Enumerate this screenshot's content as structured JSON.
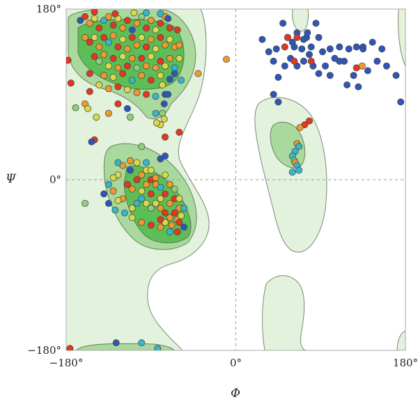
{
  "chart_data": {
    "type": "scatter",
    "title": "",
    "xlabel": "Φ",
    "ylabel": "Ψ",
    "xlim": [
      -180,
      180
    ],
    "ylim": [
      -180,
      180
    ],
    "x_ticks": [
      {
        "value": -180,
        "label": "−180°"
      },
      {
        "value": 0,
        "label": "0°"
      },
      {
        "value": 180,
        "label": "180°"
      }
    ],
    "y_ticks": [
      {
        "value": 180,
        "label": "180°"
      },
      {
        "value": 0,
        "label": "0°"
      },
      {
        "value": -180,
        "label": "−180°"
      }
    ],
    "zero_lines": true,
    "colors": {
      "red": "#e5361f",
      "orange": "#f09a2a",
      "yellow": "#d9d94a",
      "lightgreen": "#8fd07a",
      "cyan": "#38b6c9",
      "blue": "#2e55b8"
    },
    "points": [
      [
        -165,
        168,
        "blue"
      ],
      [
        -160,
        172,
        "red"
      ],
      [
        -155,
        165,
        "orange"
      ],
      [
        -150,
        170,
        "yellow"
      ],
      [
        -145,
        160,
        "red"
      ],
      [
        -140,
        168,
        "cyan"
      ],
      [
        -135,
        172,
        "orange"
      ],
      [
        -130,
        163,
        "red"
      ],
      [
        -125,
        170,
        "yellow"
      ],
      [
        -120,
        160,
        "orange"
      ],
      [
        -115,
        168,
        "red"
      ],
      [
        -110,
        158,
        "blue"
      ],
      [
        -105,
        165,
        "orange"
      ],
      [
        -100,
        172,
        "lightgreen"
      ],
      [
        -95,
        160,
        "red"
      ],
      [
        -90,
        168,
        "orange"
      ],
      [
        -85,
        158,
        "yellow"
      ],
      [
        -80,
        165,
        "red"
      ],
      [
        -75,
        172,
        "orange"
      ],
      [
        -70,
        160,
        "red"
      ],
      [
        -160,
        150,
        "orange"
      ],
      [
        -155,
        145,
        "red"
      ],
      [
        -150,
        150,
        "yellow"
      ],
      [
        -145,
        140,
        "orange"
      ],
      [
        -140,
        150,
        "red"
      ],
      [
        -135,
        145,
        "cyan"
      ],
      [
        -130,
        152,
        "orange"
      ],
      [
        -125,
        140,
        "red"
      ],
      [
        -120,
        148,
        "yellow"
      ],
      [
        -115,
        138,
        "orange"
      ],
      [
        -110,
        150,
        "red"
      ],
      [
        -105,
        142,
        "orange"
      ],
      [
        -100,
        150,
        "yellow"
      ],
      [
        -95,
        140,
        "red"
      ],
      [
        -90,
        148,
        "orange"
      ],
      [
        -85,
        138,
        "yellow"
      ],
      [
        -80,
        150,
        "red"
      ],
      [
        -75,
        142,
        "orange"
      ],
      [
        -70,
        148,
        "yellow"
      ],
      [
        -65,
        140,
        "orange"
      ],
      [
        -150,
        130,
        "red"
      ],
      [
        -145,
        125,
        "lightgreen"
      ],
      [
        -140,
        132,
        "orange"
      ],
      [
        -135,
        120,
        "yellow"
      ],
      [
        -130,
        128,
        "red"
      ],
      [
        -125,
        118,
        "orange"
      ],
      [
        -120,
        130,
        "yellow"
      ],
      [
        -115,
        120,
        "red"
      ],
      [
        -110,
        128,
        "orange"
      ],
      [
        -105,
        118,
        "lightgreen"
      ],
      [
        -100,
        128,
        "red"
      ],
      [
        -95,
        120,
        "orange"
      ],
      [
        -90,
        130,
        "yellow"
      ],
      [
        -85,
        118,
        "orange"
      ],
      [
        -80,
        125,
        "red"
      ],
      [
        -75,
        120,
        "yellow"
      ],
      [
        -70,
        128,
        "orange"
      ],
      [
        -65,
        118,
        "cyan"
      ],
      [
        -140,
        110,
        "orange"
      ],
      [
        -130,
        108,
        "yellow"
      ],
      [
        -120,
        112,
        "red"
      ],
      [
        -110,
        105,
        "cyan"
      ],
      [
        -100,
        110,
        "orange"
      ],
      [
        -90,
        105,
        "red"
      ],
      [
        -80,
        110,
        "yellow"
      ],
      [
        -70,
        106,
        "blue"
      ],
      [
        -155,
        112,
        "red"
      ],
      [
        -145,
        100,
        "yellow"
      ],
      [
        -135,
        96,
        "orange"
      ],
      [
        -125,
        98,
        "red"
      ],
      [
        -115,
        95,
        "yellow"
      ],
      [
        -105,
        92,
        "orange"
      ],
      [
        -95,
        90,
        "red"
      ],
      [
        -85,
        88,
        "cyan"
      ],
      [
        -75,
        90,
        "blue"
      ],
      [
        -65,
        112,
        "blue"
      ],
      [
        -60,
        128,
        "yellow"
      ],
      [
        -60,
        142,
        "orange"
      ],
      [
        -62,
        158,
        "red"
      ],
      [
        -72,
        170,
        "blue"
      ],
      [
        -80,
        175,
        "cyan"
      ],
      [
        -128,
        175,
        "red"
      ],
      [
        -108,
        176,
        "yellow"
      ],
      [
        -150,
        177,
        "red"
      ],
      [
        -95,
        176,
        "cyan"
      ],
      [
        -58,
        105,
        "cyan"
      ],
      [
        -78,
        100,
        "yellow"
      ],
      [
        -72,
        90,
        "blue"
      ],
      [
        -76,
        80,
        "blue"
      ],
      [
        -85,
        70,
        "cyan"
      ],
      [
        -78,
        70,
        "lightgreen"
      ],
      [
        -76,
        64,
        "yellow"
      ],
      [
        -80,
        58,
        "yellow"
      ],
      [
        -84,
        60,
        "yellow"
      ],
      [
        -40,
        112,
        "orange"
      ],
      [
        -115,
        75,
        "blue"
      ],
      [
        -178,
        126,
        "red"
      ],
      [
        -175,
        102,
        "red"
      ],
      [
        -160,
        80,
        "orange"
      ],
      [
        -157,
        75,
        "yellow"
      ],
      [
        -170,
        76,
        "lightgreen"
      ],
      [
        -148,
        66,
        "yellow"
      ],
      [
        -135,
        70,
        "orange"
      ],
      [
        -125,
        80,
        "red"
      ],
      [
        -112,
        66,
        "lightgreen"
      ],
      [
        -155,
        93,
        "red"
      ],
      [
        -150,
        42,
        "red"
      ],
      [
        -153,
        40,
        "blue"
      ],
      [
        -100,
        35,
        "lightgreen"
      ],
      [
        -75,
        45,
        "red"
      ],
      [
        -60,
        50,
        "red"
      ],
      [
        -10,
        127,
        "orange"
      ],
      [
        -160,
        -25,
        "lightgreen"
      ],
      [
        -176,
        -178,
        "red"
      ],
      [
        -127,
        -172,
        "blue"
      ],
      [
        -100,
        -172,
        "cyan"
      ],
      [
        -83,
        -178,
        "cyan"
      ],
      [
        -135,
        -5,
        "cyan"
      ],
      [
        -130,
        -12,
        "orange"
      ],
      [
        -125,
        5,
        "yellow"
      ],
      [
        -120,
        15,
        "orange"
      ],
      [
        -115,
        -5,
        "red"
      ],
      [
        -112,
        10,
        "blue"
      ],
      [
        -105,
        0,
        "red"
      ],
      [
        -100,
        5,
        "orange"
      ],
      [
        -95,
        10,
        "yellow"
      ],
      [
        -90,
        0,
        "red"
      ],
      [
        -110,
        -10,
        "orange"
      ],
      [
        -100,
        -12,
        "yellow"
      ],
      [
        -95,
        -5,
        "orange"
      ],
      [
        -90,
        -15,
        "red"
      ],
      [
        -85,
        -5,
        "orange"
      ],
      [
        -80,
        -20,
        "yellow"
      ],
      [
        -75,
        -15,
        "red"
      ],
      [
        -70,
        -25,
        "orange"
      ],
      [
        -65,
        -20,
        "red"
      ],
      [
        -60,
        -30,
        "orange"
      ],
      [
        -85,
        -25,
        "yellow"
      ],
      [
        -80,
        -30,
        "orange"
      ],
      [
        -75,
        -35,
        "red"
      ],
      [
        -70,
        -40,
        "orange"
      ],
      [
        -65,
        -35,
        "red"
      ],
      [
        -62,
        -42,
        "orange"
      ],
      [
        -60,
        -45,
        "red"
      ],
      [
        -58,
        -38,
        "yellow"
      ],
      [
        -68,
        -48,
        "orange"
      ],
      [
        -75,
        -45,
        "yellow"
      ],
      [
        -80,
        -42,
        "red"
      ],
      [
        -90,
        -30,
        "lightgreen"
      ],
      [
        -95,
        -25,
        "yellow"
      ],
      [
        -100,
        -20,
        "cyan"
      ],
      [
        -105,
        -25,
        "cyan"
      ],
      [
        -110,
        -30,
        "yellow"
      ],
      [
        -120,
        -20,
        "orange"
      ],
      [
        -125,
        -22,
        "yellow"
      ],
      [
        -118,
        -35,
        "cyan"
      ],
      [
        -110,
        -40,
        "yellow"
      ],
      [
        -100,
        -45,
        "orange"
      ],
      [
        -90,
        -48,
        "red"
      ],
      [
        -80,
        -50,
        "orange"
      ],
      [
        -70,
        -55,
        "cyan"
      ],
      [
        -62,
        -55,
        "red"
      ],
      [
        -55,
        -50,
        "blue"
      ],
      [
        -55,
        -30,
        "cyan"
      ],
      [
        -60,
        -20,
        "yellow"
      ],
      [
        -65,
        -10,
        "lightgreen"
      ],
      [
        -70,
        -5,
        "orange"
      ],
      [
        -75,
        5,
        "yellow"
      ],
      [
        -80,
        -8,
        "cyan"
      ],
      [
        -85,
        2,
        "orange"
      ],
      [
        -90,
        10,
        "yellow"
      ],
      [
        -95,
        18,
        "cyan"
      ],
      [
        -105,
        18,
        "yellow"
      ],
      [
        -112,
        20,
        "orange"
      ],
      [
        -125,
        18,
        "cyan"
      ],
      [
        -130,
        2,
        "yellow"
      ],
      [
        -135,
        -25,
        "blue"
      ],
      [
        -128,
        -32,
        "cyan"
      ],
      [
        -140,
        -15,
        "blue"
      ],
      [
        -80,
        22,
        "blue"
      ],
      [
        -75,
        25,
        "blue"
      ],
      [
        28,
        148,
        "blue"
      ],
      [
        35,
        135,
        "blue"
      ],
      [
        40,
        125,
        "blue"
      ],
      [
        43,
        138,
        "blue"
      ],
      [
        50,
        165,
        "blue"
      ],
      [
        55,
        150,
        "blue"
      ],
      [
        60,
        145,
        "blue"
      ],
      [
        65,
        155,
        "blue"
      ],
      [
        70,
        138,
        "blue"
      ],
      [
        75,
        150,
        "blue"
      ],
      [
        80,
        140,
        "blue"
      ],
      [
        85,
        165,
        "blue"
      ],
      [
        88,
        150,
        "blue"
      ],
      [
        92,
        135,
        "blue"
      ],
      [
        95,
        120,
        "blue"
      ],
      [
        100,
        110,
        "blue"
      ],
      [
        105,
        128,
        "blue"
      ],
      [
        110,
        140,
        "blue"
      ],
      [
        115,
        125,
        "blue"
      ],
      [
        120,
        138,
        "blue"
      ],
      [
        125,
        110,
        "blue"
      ],
      [
        130,
        98,
        "blue"
      ],
      [
        135,
        140,
        "blue"
      ],
      [
        140,
        115,
        "blue"
      ],
      [
        145,
        145,
        "blue"
      ],
      [
        150,
        125,
        "blue"
      ],
      [
        155,
        138,
        "blue"
      ],
      [
        160,
        120,
        "blue"
      ],
      [
        170,
        110,
        "blue"
      ],
      [
        175,
        82,
        "blue"
      ],
      [
        72,
        125,
        "blue"
      ],
      [
        78,
        132,
        "blue"
      ],
      [
        82,
        120,
        "blue"
      ],
      [
        88,
        112,
        "blue"
      ],
      [
        65,
        120,
        "blue"
      ],
      [
        58,
        128,
        "blue"
      ],
      [
        52,
        120,
        "blue"
      ],
      [
        45,
        108,
        "blue"
      ],
      [
        40,
        90,
        "blue"
      ],
      [
        45,
        82,
        "blue"
      ],
      [
        135,
        138,
        "blue"
      ],
      [
        128,
        140,
        "blue"
      ],
      [
        110,
        125,
        "blue"
      ],
      [
        118,
        100,
        "blue"
      ],
      [
        100,
        138,
        "blue"
      ],
      [
        62,
        140,
        "blue"
      ],
      [
        72,
        148,
        "blue"
      ],
      [
        76,
        155,
        "blue"
      ],
      [
        128,
        118,
        "red"
      ],
      [
        134,
        120,
        "orange"
      ],
      [
        55,
        150,
        "red"
      ],
      [
        65,
        150,
        "red"
      ],
      [
        52,
        140,
        "red"
      ],
      [
        62,
        125,
        "red"
      ],
      [
        80,
        125,
        "red"
      ],
      [
        78,
        62,
        "red"
      ],
      [
        73,
        58,
        "red"
      ],
      [
        68,
        55,
        "orange"
      ],
      [
        65,
        38,
        "orange"
      ],
      [
        67,
        35,
        "cyan"
      ],
      [
        63,
        30,
        "cyan"
      ],
      [
        60,
        25,
        "cyan"
      ],
      [
        62,
        20,
        "lightgreen"
      ],
      [
        63,
        18,
        "orange"
      ],
      [
        65,
        15,
        "cyan"
      ],
      [
        67,
        10,
        "cyan"
      ],
      [
        60,
        8,
        "cyan"
      ]
    ]
  }
}
